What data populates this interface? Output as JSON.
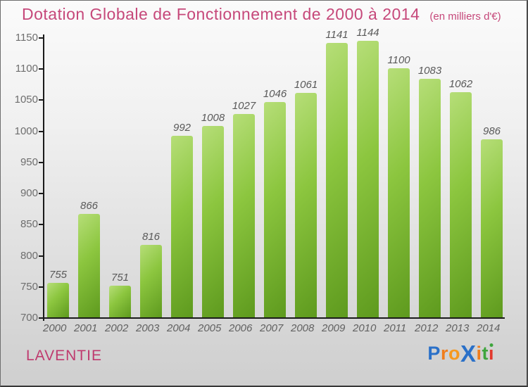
{
  "colors": {
    "accent_pink": "#c6487a",
    "location_pink": "#bf3a6e",
    "axis": "#1a1a1a",
    "bar_light": "#b6de78",
    "bar_mid": "#8cc63f",
    "bar_dark": "#5e9a1e",
    "label_gray": "#595959"
  },
  "chart_data": {
    "type": "bar",
    "title": "Dotation Globale de Fonctionnement de 2000 à 2014",
    "subtitle": "(en milliers d'€)",
    "categories": [
      "2000",
      "2001",
      "2002",
      "2003",
      "2004",
      "2005",
      "2006",
      "2007",
      "2008",
      "2009",
      "2010",
      "2011",
      "2012",
      "2013",
      "2014"
    ],
    "values": [
      755,
      866,
      751,
      816,
      992,
      1008,
      1027,
      1046,
      1061,
      1141,
      1144,
      1100,
      1083,
      1062,
      986
    ],
    "xlabel": "",
    "ylabel": "",
    "ylim": [
      700,
      1150
    ],
    "yticks": [
      700,
      750,
      800,
      850,
      900,
      950,
      1000,
      1050,
      1100,
      1150
    ],
    "grid": false,
    "legend": "none",
    "bar_value_labels_shown": true
  },
  "footer": {
    "location_label": "LAVENTIE",
    "logo_text": "Proxiti",
    "logo_letters": [
      {
        "ch": "P",
        "color": "#2a70c8"
      },
      {
        "ch": "r",
        "color": "#f07d1c"
      },
      {
        "ch": "o",
        "color": "#f6991f"
      },
      {
        "ch": "X",
        "color": "#2a70c8",
        "big": true
      },
      {
        "ch": "i",
        "color": "#f07d1c"
      },
      {
        "ch": "t",
        "color": "#3ea53c"
      },
      {
        "ch": "i",
        "color": "#e23a2e",
        "dot_color": "#3ea53c"
      }
    ]
  }
}
